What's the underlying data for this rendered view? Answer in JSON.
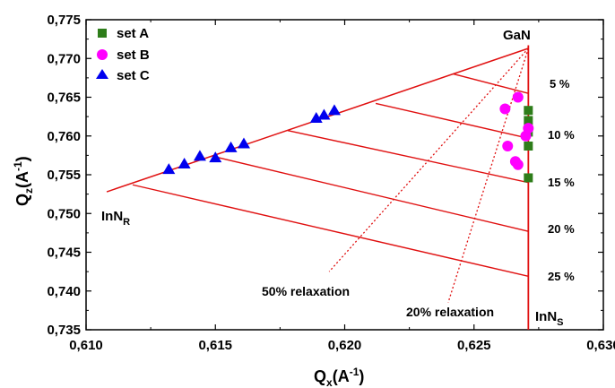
{
  "chart_data": {
    "type": "scatter",
    "xlabel": "Q_x (Å^-1)",
    "ylabel": "Q_z (Å^-1)",
    "xlabel_parts": {
      "main": "Q",
      "sub": "x",
      "unit_pre": "(A",
      "unit_sup": "-1",
      "unit_post": ")"
    },
    "ylabel_parts": {
      "main": "Q",
      "sub": "z",
      "unit_pre": "(A",
      "unit_sup": "-1",
      "unit_post": ")"
    },
    "xlim": [
      0.61,
      0.63
    ],
    "ylim": [
      0.735,
      0.775
    ],
    "xticks": [
      0.61,
      0.615,
      0.62,
      0.625,
      0.63
    ],
    "yticks": [
      0.735,
      0.74,
      0.745,
      0.75,
      0.755,
      0.76,
      0.765,
      0.77,
      0.775
    ],
    "xtick_labels": [
      "0,610",
      "0,615",
      "0,620",
      "0,625",
      "0,630"
    ],
    "ytick_labels": [
      "0,735",
      "0,740",
      "0,745",
      "0,750",
      "0,755",
      "0,760",
      "0,765",
      "0,770",
      "0,775"
    ],
    "legend": {
      "position": "top-left",
      "entries": [
        {
          "name": "set A",
          "marker": "square",
          "color": "#2e7d1a"
        },
        {
          "name": "set B",
          "marker": "circle",
          "color": "#ff00ff"
        },
        {
          "name": "set C",
          "marker": "triangle",
          "color": "#0000ee"
        }
      ]
    },
    "series": [
      {
        "name": "set A",
        "marker": "square",
        "color": "#2e7d1a",
        "points": [
          [
            0.6271,
            0.7633
          ],
          [
            0.6271,
            0.762
          ],
          [
            0.6271,
            0.7605
          ],
          [
            0.6271,
            0.7587
          ],
          [
            0.6271,
            0.7546
          ]
        ]
      },
      {
        "name": "set B",
        "marker": "circle",
        "color": "#ff00ff",
        "points": [
          [
            0.6267,
            0.765
          ],
          [
            0.6262,
            0.7635
          ],
          [
            0.6271,
            0.761
          ],
          [
            0.627,
            0.76
          ],
          [
            0.6263,
            0.7587
          ],
          [
            0.6266,
            0.7567
          ],
          [
            0.6267,
            0.7563
          ]
        ]
      },
      {
        "name": "set C",
        "marker": "triangle",
        "color": "#0000ee",
        "points": [
          [
            0.6132,
            0.7558
          ],
          [
            0.6138,
            0.7565
          ],
          [
            0.6144,
            0.7575
          ],
          [
            0.615,
            0.7573
          ],
          [
            0.6156,
            0.7586
          ],
          [
            0.6161,
            0.7591
          ],
          [
            0.6189,
            0.7624
          ],
          [
            0.6192,
            0.7628
          ],
          [
            0.6196,
            0.7634
          ]
        ]
      }
    ],
    "triangle": {
      "color": "#e01010",
      "gan": [
        0.6271,
        0.7713
      ],
      "inn_r": [
        0.6108,
        0.7528
      ],
      "vertical_bottom": [
        0.6271,
        0.735
      ],
      "tick_top": [
        0.6271,
        0.7717
      ],
      "tie_lines": [
        {
          "from": [
            0.6242,
            0.768
          ],
          "to": [
            0.6271,
            0.7655
          ]
        },
        {
          "from": [
            0.6212,
            0.7642
          ],
          "to": [
            0.6271,
            0.7597
          ]
        },
        {
          "from": [
            0.6178,
            0.7607
          ],
          "to": [
            0.6271,
            0.754
          ]
        },
        {
          "from": [
            0.615,
            0.7573
          ],
          "to": [
            0.6271,
            0.7477
          ]
        },
        {
          "from": [
            0.6118,
            0.7537
          ],
          "to": [
            0.6271,
            0.7419
          ]
        }
      ],
      "relaxation_lines": [
        {
          "label": "50% relaxation",
          "from": [
            0.6271,
            0.7713
          ],
          "to": [
            0.6194,
            0.7425
          ]
        },
        {
          "label": "20% relaxation",
          "from": [
            0.6271,
            0.7713
          ],
          "to": [
            0.624,
            0.7385
          ]
        }
      ]
    },
    "annotations": {
      "gan": "GaN",
      "inn_r_main": "InN",
      "inn_r_sub": "R",
      "inn_s_main": "InN",
      "inn_s_sub": "S",
      "relax50": "50% relaxation",
      "relax20": "20% relaxation",
      "percents": [
        "5 %",
        "10 %",
        "15 %",
        "20 %",
        "25 %"
      ]
    }
  }
}
